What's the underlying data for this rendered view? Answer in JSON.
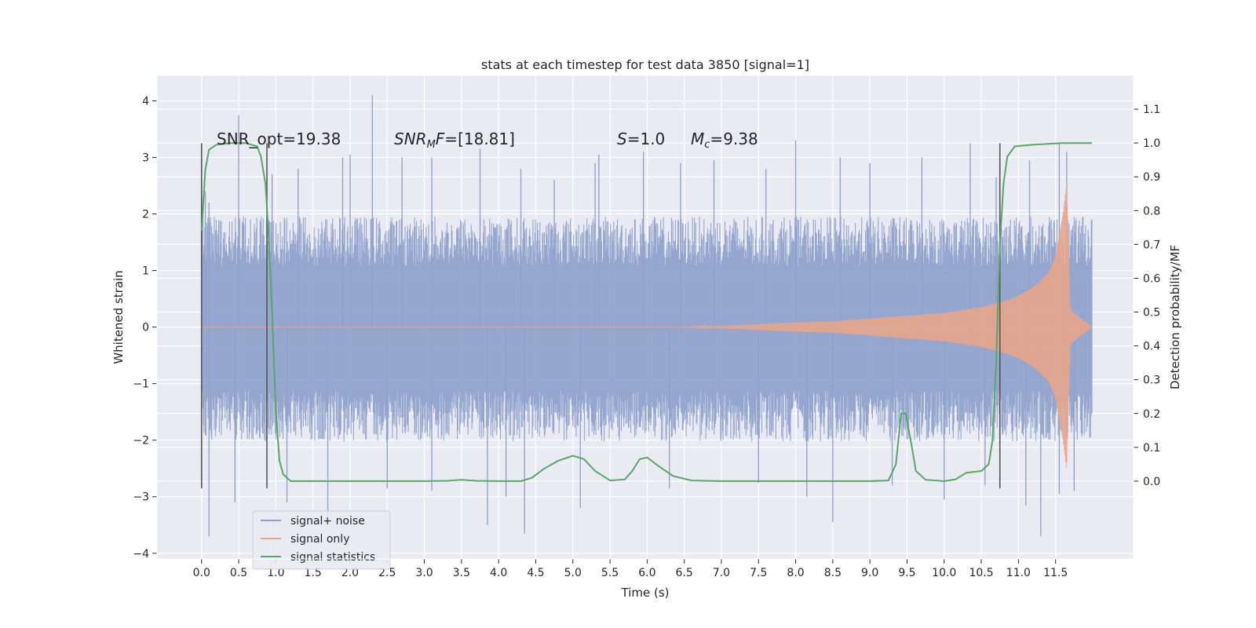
{
  "chart_data": {
    "type": "line",
    "title": "stats at each timestep for test data 3850 [signal=1]",
    "xlabel": "Time (s)",
    "ylabel_left": "Whitened strain",
    "ylabel_right": "Detection probability/MF",
    "xlim": [
      -0.6,
      12.55
    ],
    "ylim_left": [
      -4.1,
      4.45
    ],
    "ylim_right": [
      -0.23,
      1.2
    ],
    "x_ticks": [
      "0.0",
      "0.5",
      "1.0",
      "1.5",
      "2.0",
      "2.5",
      "3.0",
      "3.5",
      "4.0",
      "4.5",
      "5.0",
      "5.5",
      "6.0",
      "6.5",
      "7.0",
      "7.5",
      "8.0",
      "8.5",
      "9.0",
      "9.5",
      "10.0",
      "10.5",
      "11.0",
      "11.5"
    ],
    "y_ticks_left": [
      "−4",
      "−3",
      "−2",
      "−1",
      "0",
      "1",
      "2",
      "3",
      "4"
    ],
    "y_ticks_right": [
      "0.0",
      "0.1",
      "0.2",
      "0.3",
      "0.4",
      "0.5",
      "0.6",
      "0.7",
      "0.8",
      "0.9",
      "1.0",
      "1.1"
    ],
    "grid": true,
    "legend_position": "lower-left",
    "annotations": {
      "snr_opt": "SNR_opt=19.38",
      "snr_mf": "[18.81]",
      "s_value": "1.0",
      "mc_value": "9.38"
    },
    "vertical_markers": [
      {
        "x": 0.0,
        "y_top": 3.25,
        "y_bottom": -2.85
      },
      {
        "x": 0.88,
        "y_top": 3.25,
        "y_bottom": -2.85
      },
      {
        "x": 10.75,
        "y_top": 3.25,
        "y_bottom": -2.85
      }
    ],
    "series": [
      {
        "name": "signal+ noise",
        "color": "#8da0cb",
        "kind": "noise",
        "x_range": [
          0.0,
          11.99
        ],
        "dense_band": [
          -1.5,
          1.45
        ],
        "peaks_upper": [
          [
            0.05,
            2.4
          ],
          [
            0.1,
            2.2
          ],
          [
            0.5,
            3.75
          ],
          [
            0.95,
            2.7
          ],
          [
            1.3,
            2.8
          ],
          [
            1.9,
            3.0
          ],
          [
            2.0,
            3.05
          ],
          [
            2.3,
            4.1
          ],
          [
            2.7,
            3.0
          ],
          [
            3.1,
            3.0
          ],
          [
            3.75,
            3.15
          ],
          [
            4.3,
            2.8
          ],
          [
            4.75,
            2.6
          ],
          [
            5.3,
            2.9
          ],
          [
            5.35,
            3.05
          ],
          [
            5.95,
            3.1
          ],
          [
            6.45,
            2.9
          ],
          [
            6.9,
            2.95
          ],
          [
            7.6,
            2.8
          ],
          [
            8.0,
            3.3
          ],
          [
            8.6,
            3.0
          ],
          [
            9.0,
            2.9
          ],
          [
            9.7,
            3.0
          ],
          [
            10.35,
            3.25
          ],
          [
            10.7,
            2.65
          ],
          [
            11.15,
            2.95
          ],
          [
            11.55,
            3.25
          ],
          [
            11.65,
            3.1
          ]
        ],
        "peaks_lower": [
          [
            0.1,
            -3.7
          ],
          [
            0.45,
            -3.1
          ],
          [
            1.15,
            -3.1
          ],
          [
            1.7,
            -3.4
          ],
          [
            2.5,
            -2.85
          ],
          [
            3.1,
            -2.9
          ],
          [
            3.85,
            -3.5
          ],
          [
            4.1,
            -3.0
          ],
          [
            4.35,
            -3.65
          ],
          [
            5.1,
            -3.2
          ],
          [
            6.3,
            -2.85
          ],
          [
            7.5,
            -2.75
          ],
          [
            8.15,
            -3.0
          ],
          [
            8.5,
            -3.45
          ],
          [
            9.3,
            -2.8
          ],
          [
            10.0,
            -3.05
          ],
          [
            10.55,
            -2.8
          ],
          [
            11.1,
            -3.15
          ],
          [
            11.3,
            -3.7
          ],
          [
            11.55,
            -2.95
          ],
          [
            11.75,
            -2.9
          ]
        ]
      },
      {
        "name": "signal only",
        "color": "#e5a68a",
        "kind": "chirp",
        "x_range": [
          0.0,
          11.99
        ],
        "envelope": [
          [
            0.0,
            0.0
          ],
          [
            6.5,
            0.0
          ],
          [
            7.0,
            0.02
          ],
          [
            7.5,
            0.05
          ],
          [
            8.0,
            0.08
          ],
          [
            8.5,
            0.1
          ],
          [
            9.0,
            0.15
          ],
          [
            9.5,
            0.2
          ],
          [
            10.0,
            0.25
          ],
          [
            10.5,
            0.35
          ],
          [
            10.8,
            0.45
          ],
          [
            11.0,
            0.55
          ],
          [
            11.2,
            0.7
          ],
          [
            11.4,
            0.95
          ],
          [
            11.5,
            1.25
          ],
          [
            11.6,
            2.0
          ],
          [
            11.65,
            2.55
          ],
          [
            11.7,
            0.3
          ],
          [
            11.99,
            0.0
          ]
        ]
      },
      {
        "name": "signal statistics",
        "color": "#55a868",
        "kind": "line",
        "axis": "right",
        "points": [
          [
            0.0,
            0.74
          ],
          [
            0.05,
            0.92
          ],
          [
            0.1,
            0.98
          ],
          [
            0.2,
            0.995
          ],
          [
            0.4,
            1.0
          ],
          [
            0.6,
            1.0
          ],
          [
            0.75,
            0.99
          ],
          [
            0.8,
            0.96
          ],
          [
            0.86,
            0.88
          ],
          [
            0.9,
            0.74
          ],
          [
            0.95,
            0.5
          ],
          [
            1.0,
            0.2
          ],
          [
            1.05,
            0.06
          ],
          [
            1.1,
            0.02
          ],
          [
            1.2,
            0.0
          ],
          [
            2.0,
            0.0
          ],
          [
            3.0,
            0.0
          ],
          [
            3.3,
            0.001
          ],
          [
            3.5,
            0.004
          ],
          [
            3.7,
            0.001
          ],
          [
            4.0,
            0.0
          ],
          [
            4.3,
            0.0
          ],
          [
            4.45,
            0.01
          ],
          [
            4.6,
            0.035
          ],
          [
            4.8,
            0.06
          ],
          [
            5.0,
            0.075
          ],
          [
            5.15,
            0.065
          ],
          [
            5.3,
            0.03
          ],
          [
            5.5,
            0.002
          ],
          [
            5.7,
            0.005
          ],
          [
            5.8,
            0.03
          ],
          [
            5.9,
            0.065
          ],
          [
            6.0,
            0.07
          ],
          [
            6.15,
            0.045
          ],
          [
            6.35,
            0.015
          ],
          [
            6.6,
            0.002
          ],
          [
            7.0,
            0.0
          ],
          [
            8.0,
            0.0
          ],
          [
            9.0,
            0.0
          ],
          [
            9.25,
            0.002
          ],
          [
            9.35,
            0.05
          ],
          [
            9.42,
            0.2
          ],
          [
            9.48,
            0.2
          ],
          [
            9.55,
            0.12
          ],
          [
            9.62,
            0.03
          ],
          [
            9.75,
            0.004
          ],
          [
            10.0,
            0.0
          ],
          [
            10.15,
            0.005
          ],
          [
            10.3,
            0.025
          ],
          [
            10.5,
            0.03
          ],
          [
            10.6,
            0.05
          ],
          [
            10.65,
            0.12
          ],
          [
            10.7,
            0.35
          ],
          [
            10.75,
            0.7
          ],
          [
            10.8,
            0.88
          ],
          [
            10.85,
            0.96
          ],
          [
            10.95,
            0.99
          ],
          [
            11.2,
            0.995
          ],
          [
            11.6,
            1.0
          ],
          [
            11.99,
            1.0
          ]
        ]
      }
    ]
  }
}
